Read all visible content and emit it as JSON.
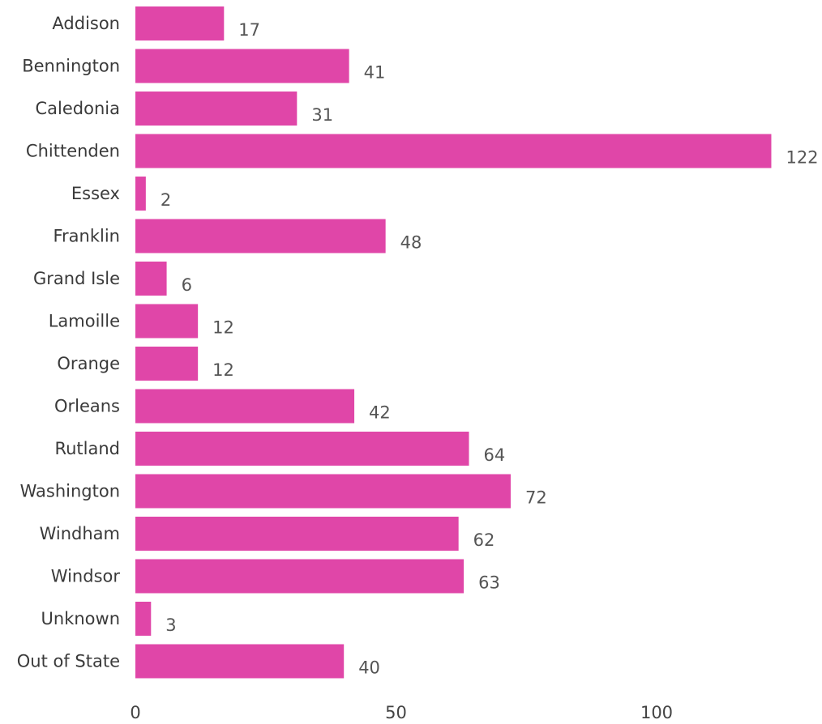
{
  "chart_data": {
    "type": "bar",
    "orientation": "horizontal",
    "categories": [
      "Addison",
      "Bennington",
      "Caledonia",
      "Chittenden",
      "Essex",
      "Franklin",
      "Grand Isle",
      "Lamoille",
      "Orange",
      "Orleans",
      "Rutland",
      "Washington",
      "Windham",
      "Windsor",
      "Unknown",
      "Out of State"
    ],
    "values": [
      17,
      41,
      31,
      122,
      2,
      48,
      6,
      12,
      12,
      42,
      64,
      72,
      62,
      63,
      3,
      40
    ],
    "data_labels": [
      "17",
      "41",
      "31",
      "122",
      "2",
      "48",
      "6",
      "12",
      "12",
      "42",
      "64",
      "72",
      "62",
      "63",
      "3",
      "40"
    ],
    "x_ticks": [
      0,
      50,
      100
    ],
    "x_tick_labels": [
      "0",
      "50",
      "100"
    ],
    "xlim": [
      0,
      122
    ],
    "grid": false,
    "legend": "none",
    "bar_color": "#e046a8"
  }
}
